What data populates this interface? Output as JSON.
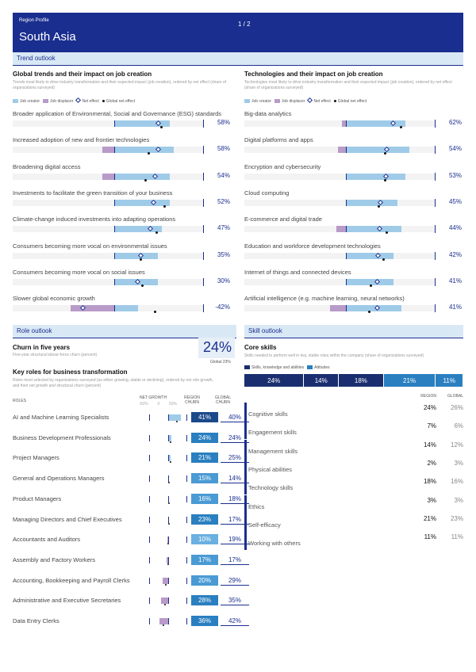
{
  "header": {
    "profile_label": "Region Profile",
    "region": "South Asia",
    "page": "1 / 2"
  },
  "trend_outlook": {
    "label": "Trend outlook",
    "left": {
      "title": "Global trends and their impact on job creation",
      "desc": "Trends most likely to drive industry transformation and their expected impact (job creation), ordered by net effect (share of organizations surveyed)",
      "legend": {
        "creator": "Job creator",
        "displacer": "Job displacer",
        "net": "Net effect",
        "global": "Global net effect"
      },
      "items": [
        {
          "label": "Broader application of Environmental, Social and Governance (ESG) standards",
          "value": "58%",
          "v": 58
        },
        {
          "label": "Increased adoption of new and frontier technologies",
          "value": "58%",
          "v": 58
        },
        {
          "label": "Broadening digital access",
          "value": "54%",
          "v": 54
        },
        {
          "label": "Investments to facilitate the green transition of your business",
          "value": "52%",
          "v": 52
        },
        {
          "label": "Climate-change induced investments into adapting operations",
          "value": "47%",
          "v": 47
        },
        {
          "label": "Consumers becoming more vocal on environmental issues",
          "value": "35%",
          "v": 35
        },
        {
          "label": "Consumers becoming more vocal on social issues",
          "value": "30%",
          "v": 30
        },
        {
          "label": "Slower global economic growth",
          "value": "-42%",
          "v": -42
        }
      ]
    },
    "right": {
      "title": "Technologies and their impact on job creation",
      "desc": "Technologies most likely to drive industry transformation and their expected impact (job creation), ordered by net effect (share of organizations surveyed)",
      "legend": {
        "creator": "Job creator",
        "displacer": "Job displacer",
        "net": "Net effect",
        "global": "Global net effect"
      },
      "items": [
        {
          "label": "Big-data analytics",
          "value": "62%",
          "v": 62
        },
        {
          "label": "Digital platforms and apps",
          "value": "54%",
          "v": 54
        },
        {
          "label": "Encryption and cybersecurity",
          "value": "53%",
          "v": 53
        },
        {
          "label": "Cloud computing",
          "value": "45%",
          "v": 45
        },
        {
          "label": "E-commerce and digital trade",
          "value": "44%",
          "v": 44
        },
        {
          "label": "Education and workforce development technologies",
          "value": "42%",
          "v": 42
        },
        {
          "label": "Internet of things and connected devices",
          "value": "41%",
          "v": 41
        },
        {
          "label": "Artificial intelligence (e.g. machine learning, neural networks)",
          "value": "41%",
          "v": 41
        }
      ]
    }
  },
  "role_outlook": {
    "label": "Role outlook",
    "churn_title": "Churn in five years",
    "churn_desc": "Five-year structural labour-force churn (percent)",
    "churn_value": "24%",
    "churn_global": "Global 23%",
    "roles_title": "Key roles for business transformation",
    "roles_desc": "Roles most selected by organizations surveyed (as either growing, stable or declining), ordered by net role growth, and their net growth and structural churn (percent)",
    "col_roles": "ROLES",
    "col_net_growth": "NET GROWTH",
    "col_region": "REGION CHURN",
    "col_global": "GLOBAL CHURN",
    "axis": [
      "-50%",
      "0",
      "50%"
    ],
    "roles": [
      {
        "name": "AI and Machine Learning Specialists",
        "region": "41%",
        "global": "40%",
        "growth": 40,
        "churn": 41,
        "color": "#1a4a8a"
      },
      {
        "name": "Business Development Professionals",
        "region": "24%",
        "global": "24%",
        "growth": 10,
        "churn": 24,
        "color": "#2a7fc0"
      },
      {
        "name": "Project Managers",
        "region": "21%",
        "global": "25%",
        "growth": 8,
        "churn": 21,
        "color": "#2a7fc0"
      },
      {
        "name": "General and Operations Managers",
        "region": "15%",
        "global": "14%",
        "growth": 2,
        "churn": 15,
        "color": "#4a9ad4"
      },
      {
        "name": "Product Managers",
        "region": "16%",
        "global": "18%",
        "growth": 2,
        "churn": 16,
        "color": "#4a9ad4"
      },
      {
        "name": "Managing Directors and Chief Executives",
        "region": "23%",
        "global": "17%",
        "growth": 1,
        "churn": 23,
        "color": "#2a7fc0"
      },
      {
        "name": "Accountants and Auditors",
        "region": "10%",
        "global": "19%",
        "growth": -3,
        "churn": 10,
        "color": "#6ab0e0"
      },
      {
        "name": "Assembly and Factory Workers",
        "region": "17%",
        "global": "17%",
        "growth": -4,
        "churn": 17,
        "color": "#4a9ad4"
      },
      {
        "name": "Accounting, Bookkeeping and Payroll Clerks",
        "region": "20%",
        "global": "29%",
        "growth": -18,
        "churn": 20,
        "color": "#4a9ad4"
      },
      {
        "name": "Administrative and Executive Secretaries",
        "region": "28%",
        "global": "35%",
        "growth": -22,
        "churn": 28,
        "color": "#2a7fc0"
      },
      {
        "name": "Data Entry Clerks",
        "region": "36%",
        "global": "42%",
        "growth": -28,
        "churn": 36,
        "color": "#2a7fc0"
      }
    ]
  },
  "skill_outlook": {
    "label": "Skill outlook",
    "title": "Core skills",
    "desc": "Skills needed to perform well in key, stable roles within the company (share of organizations surveyed)",
    "legend_a": "Skills, knowledge and abilities",
    "legend_b": "Attitudes",
    "bar": [
      {
        "value": "24%",
        "v": 24,
        "color": "#1a2e6f"
      },
      {
        "value": "14%",
        "v": 14,
        "color": "#1a2e6f"
      },
      {
        "value": "18%",
        "v": 18,
        "color": "#1a2e6f"
      },
      {
        "value": "21%",
        "v": 21,
        "color": "#2a7fc0"
      },
      {
        "value": "11%",
        "v": 11,
        "color": "#2a7fc0"
      }
    ],
    "col_region": "REGION",
    "col_global": "GLOBAL",
    "skills": [
      {
        "name": "Cognitive skills",
        "region": "24%",
        "global": "26%"
      },
      {
        "name": "Engagement skills",
        "region": "7%",
        "global": "6%"
      },
      {
        "name": "Management skills",
        "region": "14%",
        "global": "12%"
      },
      {
        "name": "Physical abilities",
        "region": "2%",
        "global": "3%"
      },
      {
        "name": "Technology skills",
        "region": "18%",
        "global": "16%"
      },
      {
        "name": "Ethics",
        "region": "3%",
        "global": "3%"
      },
      {
        "name": "Self-efficacy",
        "region": "21%",
        "global": "23%"
      },
      {
        "name": "Working with others",
        "region": "11%",
        "global": "11%"
      }
    ]
  },
  "colors": {
    "brand": "#1a2e8f",
    "creator": "#9fcbe8",
    "displacer": "#b89bc8",
    "band": "#d9e8f5"
  }
}
